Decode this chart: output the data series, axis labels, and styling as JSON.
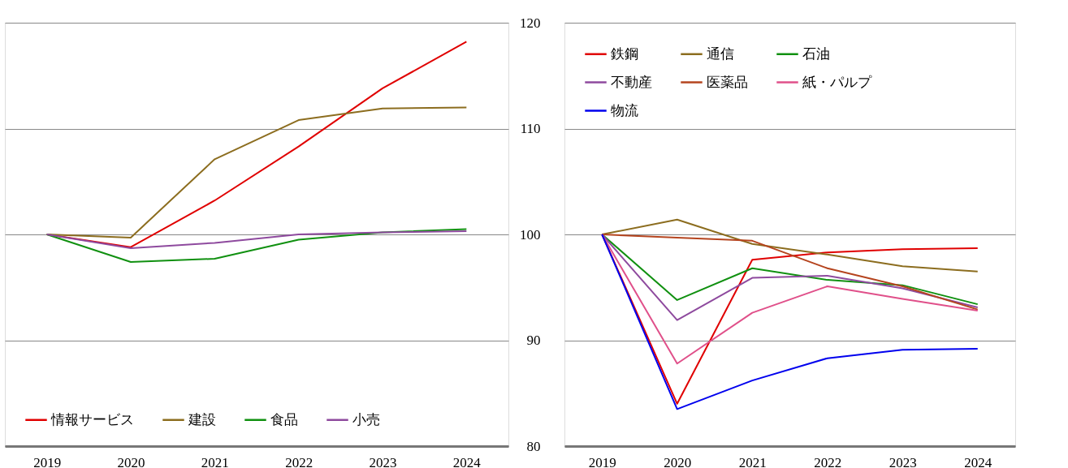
{
  "chart_data": [
    {
      "type": "line",
      "categories": [
        "2019",
        "2020",
        "2021",
        "2022",
        "2023",
        "2024"
      ],
      "ylim": [
        80,
        120
      ],
      "yticks": [
        80,
        90,
        100,
        110,
        120
      ],
      "grid": "y",
      "tick_labels": "x",
      "legend": "bottom left",
      "series": [
        {
          "name": "情報サービス",
          "color": "#e00000",
          "values": [
            100,
            98.8,
            103.2,
            108.3,
            113.8,
            118.2
          ]
        },
        {
          "name": "建設",
          "color": "#8c6d1f",
          "values": [
            100,
            99.7,
            107.1,
            110.8,
            111.9,
            112.0
          ]
        },
        {
          "name": "食品",
          "color": "#109010",
          "values": [
            100,
            97.4,
            97.7,
            99.5,
            100.2,
            100.5
          ]
        },
        {
          "name": "小売",
          "color": "#8e4a9e",
          "values": [
            100,
            98.7,
            99.2,
            100.0,
            100.2,
            100.3
          ]
        }
      ]
    },
    {
      "type": "line",
      "categories": [
        "2019",
        "2020",
        "2021",
        "2022",
        "2023",
        "2024"
      ],
      "ylim": [
        80,
        120
      ],
      "yticks": [
        80,
        90,
        100,
        110,
        120
      ],
      "grid": "y",
      "legend": "top",
      "series": [
        {
          "name": "鉄鋼",
          "color": "#e00000",
          "values": [
            100,
            84.0,
            97.6,
            98.3,
            98.6,
            98.7
          ]
        },
        {
          "name": "通信",
          "color": "#8c6d1f",
          "values": [
            100,
            101.4,
            99.1,
            98.1,
            97.0,
            96.5
          ]
        },
        {
          "name": "石油",
          "color": "#109010",
          "values": [
            100,
            93.8,
            96.8,
            95.7,
            95.2,
            93.4
          ]
        },
        {
          "name": "不動産",
          "color": "#8e4a9e",
          "values": [
            100,
            91.9,
            95.9,
            96.1,
            94.9,
            93.1
          ]
        },
        {
          "name": "医薬品",
          "color": "#b5441e",
          "values": [
            100,
            99.7,
            99.4,
            96.8,
            95.1,
            92.9
          ]
        },
        {
          "name": "紙・パルプ",
          "color": "#e0508a",
          "values": [
            100,
            87.8,
            92.6,
            95.1,
            93.9,
            92.8
          ]
        },
        {
          "name": "物流",
          "color": "#0000ee",
          "values": [
            100,
            83.5,
            86.2,
            88.3,
            89.1,
            89.2
          ]
        }
      ]
    }
  ]
}
